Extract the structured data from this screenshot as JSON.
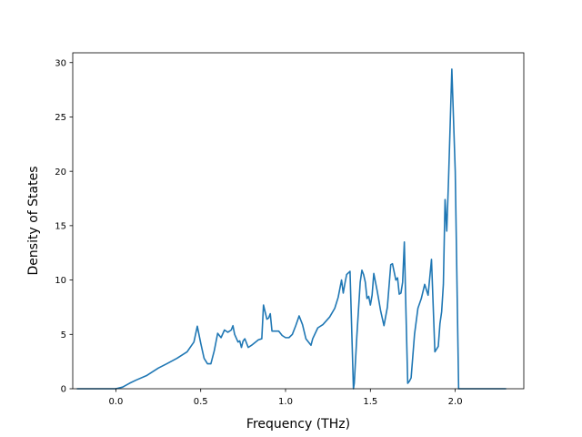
{
  "chart_data": {
    "type": "line",
    "title": "",
    "xlabel": "Frequency (THz)",
    "ylabel": "Density of States",
    "xlim": [
      -0.254,
      2.404
    ],
    "ylim": [
      0,
      30.9
    ],
    "x_ticks": [
      0.0,
      0.5,
      1.0,
      1.5,
      2.0
    ],
    "x_tick_labels": [
      "0.0",
      "0.5",
      "1.0",
      "1.5",
      "2.0"
    ],
    "y_ticks": [
      0,
      5,
      10,
      15,
      20,
      25,
      30
    ],
    "y_tick_labels": [
      "0",
      "5",
      "10",
      "15",
      "20",
      "25",
      "30"
    ],
    "grid": false,
    "line_color": "#1f77b4",
    "series": [
      {
        "x": [
          -0.23,
          -0.15,
          -0.05,
          0.0,
          0.04,
          0.08,
          0.12,
          0.18,
          0.25,
          0.3,
          0.36,
          0.42,
          0.46,
          0.48,
          0.5,
          0.52,
          0.54,
          0.56,
          0.58,
          0.6,
          0.62,
          0.64,
          0.66,
          0.68,
          0.69,
          0.7,
          0.72,
          0.73,
          0.74,
          0.75,
          0.76,
          0.78,
          0.8,
          0.84,
          0.86,
          0.87,
          0.89,
          0.9,
          0.91,
          0.92,
          0.94,
          0.96,
          0.98,
          1.0,
          1.02,
          1.04,
          1.06,
          1.08,
          1.1,
          1.12,
          1.14,
          1.15,
          1.16,
          1.19,
          1.22,
          1.26,
          1.29,
          1.31,
          1.33,
          1.34,
          1.35,
          1.36,
          1.38,
          1.4,
          1.405,
          1.42,
          1.44,
          1.45,
          1.46,
          1.47,
          1.48,
          1.49,
          1.5,
          1.51,
          1.52,
          1.54,
          1.56,
          1.58,
          1.6,
          1.62,
          1.63,
          1.65,
          1.66,
          1.67,
          1.68,
          1.69,
          1.7,
          1.71,
          1.72,
          1.73,
          1.74,
          1.75,
          1.76,
          1.78,
          1.8,
          1.82,
          1.84,
          1.86,
          1.88,
          1.9,
          1.91,
          1.92,
          1.93,
          1.94,
          1.95,
          1.96,
          1.98,
          2.0,
          2.02,
          2.03,
          2.04,
          2.05,
          2.06,
          2.08,
          2.09,
          2.1,
          2.15,
          2.3
        ],
        "y": [
          0,
          0,
          0,
          0,
          0.15,
          0.5,
          0.8,
          1.2,
          1.9,
          2.3,
          2.8,
          3.4,
          4.3,
          5.75,
          4.2,
          2.8,
          2.3,
          2.3,
          3.5,
          5.1,
          4.7,
          5.4,
          5.2,
          5.4,
          5.8,
          5.0,
          4.3,
          4.4,
          3.8,
          4.4,
          4.6,
          3.8,
          4.0,
          4.5,
          4.6,
          7.7,
          6.4,
          6.5,
          6.9,
          5.3,
          5.3,
          5.3,
          4.9,
          4.7,
          4.7,
          5.0,
          5.8,
          6.7,
          5.9,
          4.6,
          4.2,
          4.0,
          4.6,
          5.6,
          5.9,
          6.6,
          7.4,
          8.4,
          10.0,
          8.8,
          9.7,
          10.5,
          10.8,
          0.0,
          0.5,
          4.8,
          9.8,
          10.9,
          10.5,
          9.8,
          8.3,
          8.5,
          7.7,
          8.6,
          10.6,
          9.0,
          7.2,
          5.8,
          7.5,
          11.4,
          11.5,
          10.0,
          10.2,
          8.7,
          8.8,
          9.8,
          13.5,
          6.8,
          0.5,
          0.7,
          1.0,
          3.0,
          5.0,
          7.4,
          8.3,
          9.6,
          8.6,
          11.9,
          3.4,
          3.9,
          6.0,
          7.1,
          9.6,
          17.4,
          14.5,
          19.0,
          29.4,
          20.0,
          0.0,
          0.0,
          0.0,
          0.0,
          0.0,
          0.0,
          0.0,
          0.0,
          0.0,
          0.0
        ]
      }
    ]
  }
}
